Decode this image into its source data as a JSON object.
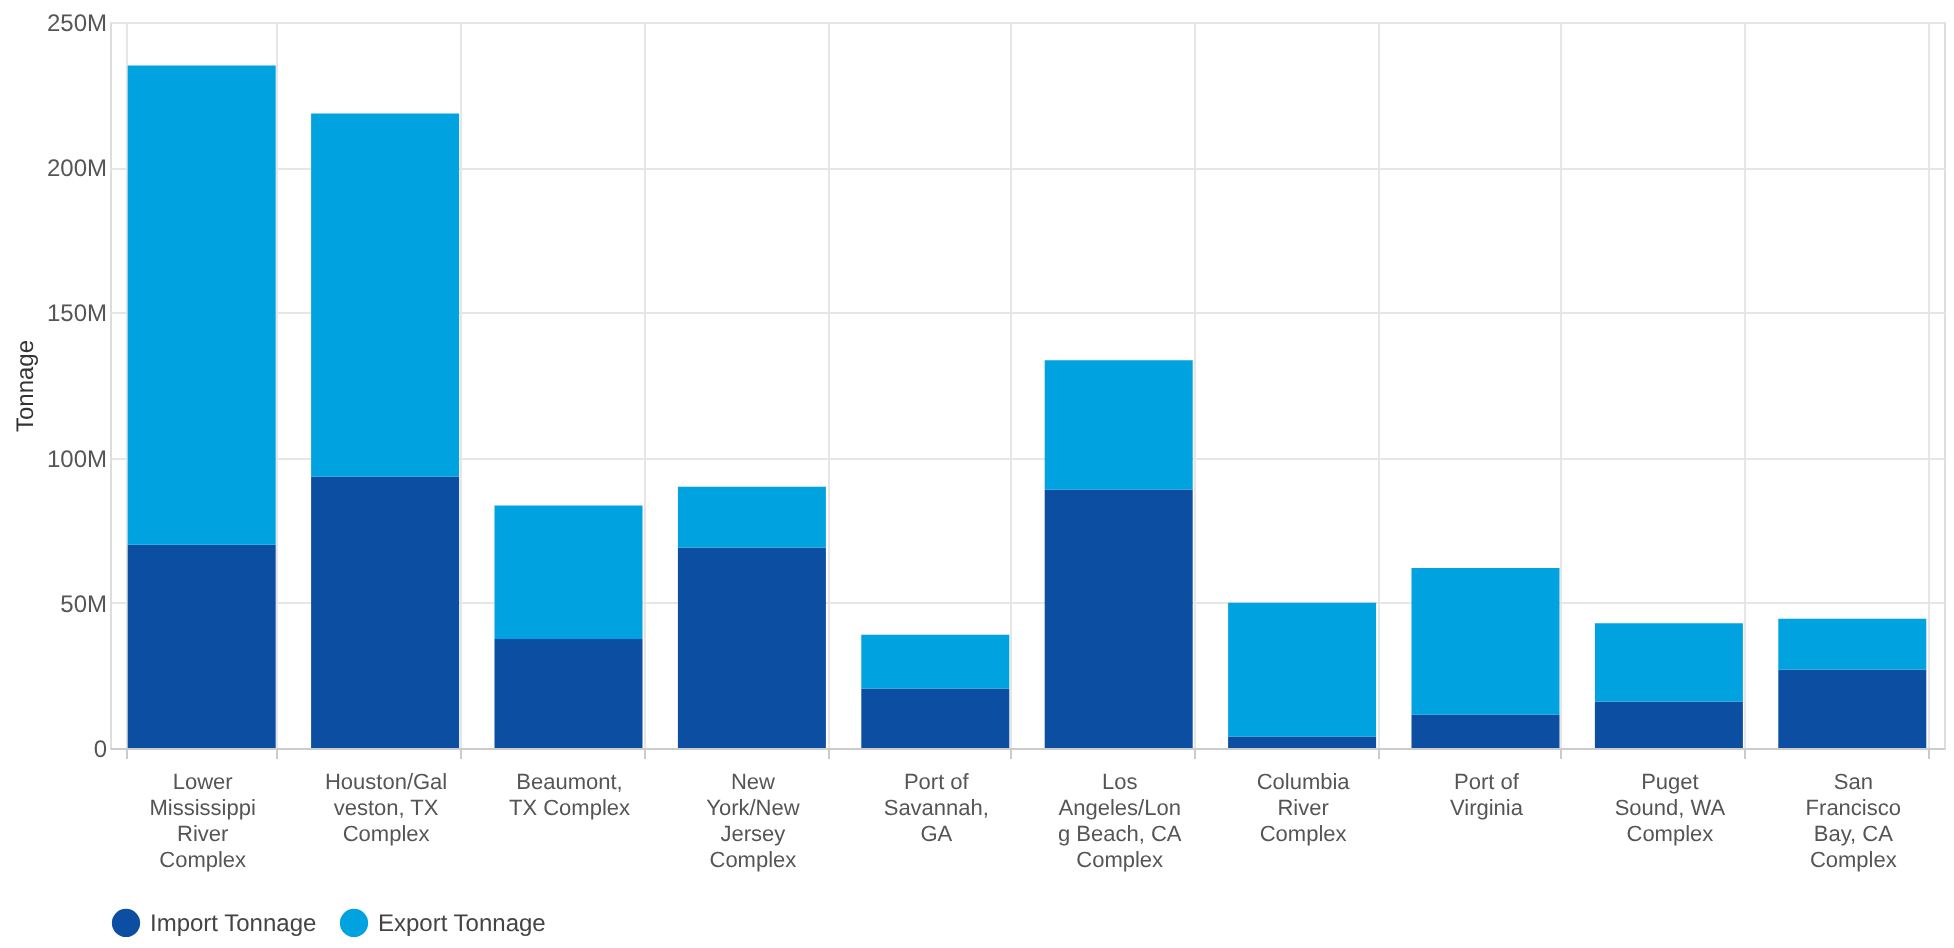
{
  "chart_data": {
    "type": "bar",
    "stacked": true,
    "ylabel": "Tonnage",
    "categories": [
      "Lower Mississippi River Complex",
      "Houston/Galveston, TX Complex",
      "Beaumont, TX Complex",
      "New York/New Jersey Complex",
      "Port of Savannah, GA",
      "Los Angeles/Long Beach, CA Complex",
      "Columbia River Complex",
      "Port of Virginia",
      "Puget Sound, WA Complex",
      "San Francisco Bay, CA Complex"
    ],
    "series": [
      {
        "name": "Import Tonnage",
        "color": "#0b4ea2",
        "values": [
          70,
          93.5,
          37.5,
          69,
          20.5,
          89,
          4,
          11.5,
          16,
          27
        ]
      },
      {
        "name": "Export Tonnage",
        "color": "#00a3e0",
        "values": [
          165,
          125,
          46,
          21,
          18.5,
          44.5,
          46,
          50.5,
          27,
          17.5
        ]
      }
    ],
    "ylim": [
      0,
      250
    ],
    "yticks": [
      {
        "value": 0,
        "label": "0"
      },
      {
        "value": 50,
        "label": "50M"
      },
      {
        "value": 100,
        "label": "100M"
      },
      {
        "value": 150,
        "label": "150M"
      },
      {
        "value": 200,
        "label": "200M"
      },
      {
        "value": 250,
        "label": "250M"
      }
    ],
    "grid": true,
    "legend": "bottom"
  }
}
